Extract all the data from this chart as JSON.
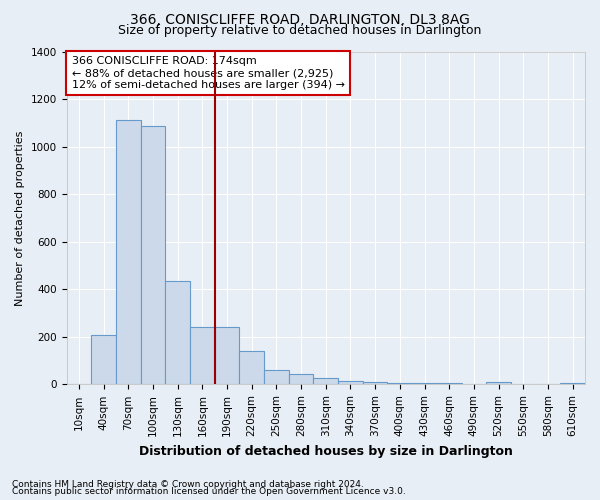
{
  "title": "366, CONISCLIFFE ROAD, DARLINGTON, DL3 8AG",
  "subtitle": "Size of property relative to detached houses in Darlington",
  "xlabel": "Distribution of detached houses by size in Darlington",
  "ylabel": "Number of detached properties",
  "footnote1": "Contains HM Land Registry data © Crown copyright and database right 2024.",
  "footnote2": "Contains public sector information licensed under the Open Government Licence v3.0.",
  "annotation_line1": "366 CONISCLIFFE ROAD: 174sqm",
  "annotation_line2": "← 88% of detached houses are smaller (2,925)",
  "annotation_line3": "12% of semi-detached houses are larger (394) →",
  "bar_categories": [
    "10sqm",
    "40sqm",
    "70sqm",
    "100sqm",
    "130sqm",
    "160sqm",
    "190sqm",
    "220sqm",
    "250sqm",
    "280sqm",
    "310sqm",
    "340sqm",
    "370sqm",
    "400sqm",
    "430sqm",
    "460sqm",
    "490sqm",
    "520sqm",
    "550sqm",
    "580sqm",
    "610sqm"
  ],
  "bar_values": [
    0,
    210,
    1110,
    1085,
    435,
    240,
    240,
    140,
    60,
    45,
    25,
    15,
    10,
    5,
    5,
    5,
    0,
    10,
    0,
    0,
    5
  ],
  "bar_color": "#ccd9ea",
  "bar_edge_color": "#6699cc",
  "vline_color": "#990000",
  "vline_x": 5.5,
  "ylim": [
    0,
    1400
  ],
  "yticks": [
    0,
    200,
    400,
    600,
    800,
    1000,
    1200,
    1400
  ],
  "background_color": "#e8eef5",
  "grid_color": "#ffffff",
  "annotation_box_facecolor": "#ffffff",
  "annotation_box_edgecolor": "#cc0000",
  "title_fontsize": 10,
  "subtitle_fontsize": 9,
  "xlabel_fontsize": 9,
  "ylabel_fontsize": 8,
  "tick_fontsize": 7.5,
  "annotation_fontsize": 8,
  "footnote_fontsize": 6.5
}
